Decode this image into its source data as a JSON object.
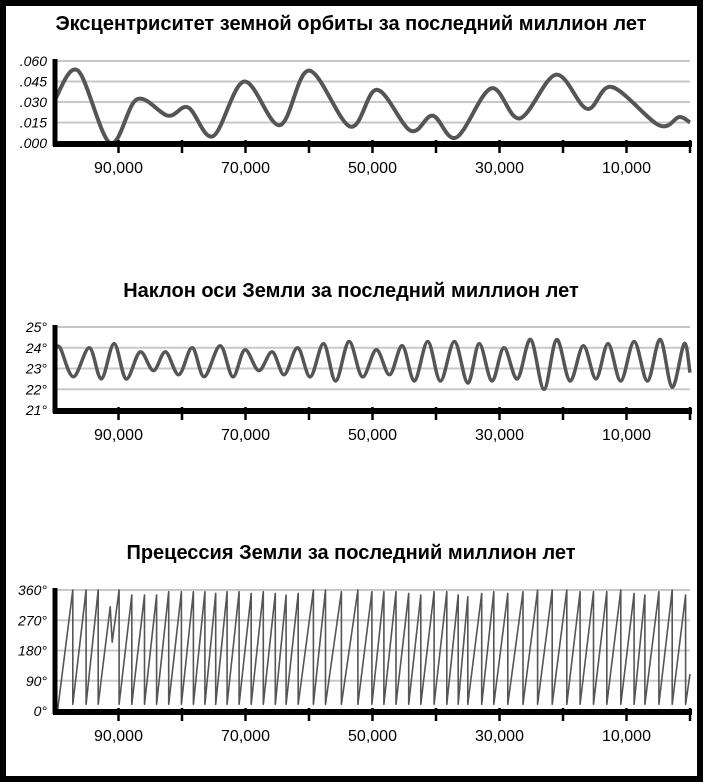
{
  "chart_data": [
    {
      "type": "line",
      "title": "Эксцентриситет земной орбиты за последний миллион лет",
      "xlim": [
        100000,
        0
      ],
      "ylim": [
        0,
        0.06
      ],
      "grid": true,
      "line_color": "#555555",
      "grid_color": "#c8c8c8",
      "yticks": [
        {
          "v": 0.06,
          "label": ".060"
        },
        {
          "v": 0.045,
          "label": ".045"
        },
        {
          "v": 0.03,
          "label": ".030"
        },
        {
          "v": 0.015,
          "label": ".015"
        },
        {
          "v": 0,
          "label": ".000"
        }
      ],
      "xticks": [
        {
          "v": 90000,
          "label": "90,000"
        },
        {
          "v": 70000,
          "label": "70,000"
        },
        {
          "v": 50000,
          "label": "50,000"
        },
        {
          "v": 30000,
          "label": "30,000"
        },
        {
          "v": 10000,
          "label": "10,000"
        }
      ],
      "points": [
        [
          100000,
          0.032
        ],
        [
          96400,
          0.053
        ],
        [
          91300,
          0.0
        ],
        [
          87100,
          0.032
        ],
        [
          82200,
          0.02
        ],
        [
          79000,
          0.026
        ],
        [
          75100,
          0.005
        ],
        [
          70200,
          0.045
        ],
        [
          64600,
          0.013
        ],
        [
          60000,
          0.053
        ],
        [
          53500,
          0.012
        ],
        [
          49300,
          0.039
        ],
        [
          44000,
          0.009
        ],
        [
          40500,
          0.02
        ],
        [
          36800,
          0.004
        ],
        [
          31300,
          0.04
        ],
        [
          26800,
          0.018
        ],
        [
          21100,
          0.05
        ],
        [
          16200,
          0.025
        ],
        [
          12300,
          0.041
        ],
        [
          4900,
          0.013
        ],
        [
          1700,
          0.019
        ],
        [
          0,
          0.015
        ]
      ]
    },
    {
      "type": "line",
      "title": "Наклон оси Земли за последний миллион лет",
      "xlim": [
        100000,
        0
      ],
      "ylim": [
        21,
        25
      ],
      "grid": true,
      "line_color": "#555555",
      "grid_color": "#c8c8c8",
      "yticks": [
        {
          "v": 25,
          "label": "25°"
        },
        {
          "v": 24,
          "label": "24°"
        },
        {
          "v": 23,
          "label": "23°"
        },
        {
          "v": 22,
          "label": "22°"
        },
        {
          "v": 21,
          "label": "21°"
        }
      ],
      "xticks": [
        {
          "v": 90000,
          "label": "90,000"
        },
        {
          "v": 70000,
          "label": "70,000"
        },
        {
          "v": 50000,
          "label": "50,000"
        },
        {
          "v": 30000,
          "label": "30,000"
        },
        {
          "v": 10000,
          "label": "10,000"
        }
      ],
      "points": [
        [
          100000,
          23.9
        ],
        [
          99200,
          24.0
        ],
        [
          97100,
          22.6
        ],
        [
          94600,
          24.0
        ],
        [
          92700,
          22.5
        ],
        [
          90700,
          24.2
        ],
        [
          88800,
          22.5
        ],
        [
          86600,
          23.8
        ],
        [
          84500,
          22.9
        ],
        [
          82600,
          23.8
        ],
        [
          80500,
          22.7
        ],
        [
          78400,
          24.0
        ],
        [
          76500,
          22.6
        ],
        [
          74000,
          24.1
        ],
        [
          72000,
          22.6
        ],
        [
          70100,
          23.9
        ],
        [
          67900,
          22.9
        ],
        [
          65800,
          23.8
        ],
        [
          63900,
          22.7
        ],
        [
          61800,
          24.0
        ],
        [
          59800,
          22.6
        ],
        [
          57700,
          24.2
        ],
        [
          55800,
          22.4
        ],
        [
          53700,
          24.3
        ],
        [
          51600,
          22.6
        ],
        [
          49400,
          23.9
        ],
        [
          47300,
          22.7
        ],
        [
          45300,
          24.1
        ],
        [
          43400,
          22.4
        ],
        [
          41300,
          24.3
        ],
        [
          39300,
          22.4
        ],
        [
          37100,
          24.3
        ],
        [
          35000,
          22.3
        ],
        [
          33200,
          24.2
        ],
        [
          31200,
          22.4
        ],
        [
          29300,
          24.0
        ],
        [
          27200,
          22.5
        ],
        [
          25100,
          24.4
        ],
        [
          23000,
          22.0
        ],
        [
          21000,
          24.4
        ],
        [
          18900,
          22.4
        ],
        [
          16800,
          24.1
        ],
        [
          14800,
          22.5
        ],
        [
          12900,
          24.2
        ],
        [
          10900,
          22.4
        ],
        [
          8800,
          24.3
        ],
        [
          6700,
          22.4
        ],
        [
          4700,
          24.4
        ],
        [
          2800,
          22.1
        ],
        [
          900,
          24.2
        ],
        [
          0,
          22.8
        ]
      ]
    },
    {
      "type": "line",
      "title": "Прецессия Земли за последний миллион лет",
      "xlim": [
        100000,
        0
      ],
      "ylim": [
        0,
        360
      ],
      "grid": true,
      "line_color": "#555555",
      "grid_color": "#c8c8c8",
      "yticks": [
        {
          "v": 360,
          "label": "360°"
        },
        {
          "v": 270,
          "label": "270°"
        },
        {
          "v": 180,
          "label": "180°"
        },
        {
          "v": 90,
          "label": "90°"
        },
        {
          "v": 0,
          "label": "0°"
        }
      ],
      "xticks": [
        {
          "v": 90000,
          "label": "90,000"
        },
        {
          "v": 70000,
          "label": "70,000"
        },
        {
          "v": 50000,
          "label": "50,000"
        },
        {
          "v": 30000,
          "label": "30,000"
        },
        {
          "v": 10000,
          "label": "10,000"
        }
      ],
      "points": [
        [
          99600,
          0
        ],
        [
          97200,
          360
        ],
        [
          97200,
          20
        ],
        [
          95100,
          360
        ],
        [
          95100,
          20
        ],
        [
          93200,
          360
        ],
        [
          93200,
          20
        ],
        [
          91300,
          310
        ],
        [
          91000,
          205
        ],
        [
          89900,
          360
        ],
        [
          89900,
          20
        ],
        [
          87900,
          345
        ],
        [
          87900,
          20
        ],
        [
          85900,
          345
        ],
        [
          85900,
          20
        ],
        [
          84000,
          345
        ],
        [
          84000,
          20
        ],
        [
          82100,
          355
        ],
        [
          82100,
          20
        ],
        [
          80100,
          355
        ],
        [
          80100,
          20
        ],
        [
          78200,
          355
        ],
        [
          78200,
          20
        ],
        [
          76400,
          355
        ],
        [
          76400,
          20
        ],
        [
          74700,
          350
        ],
        [
          74700,
          20
        ],
        [
          72900,
          355
        ],
        [
          72900,
          20
        ],
        [
          71000,
          355
        ],
        [
          71000,
          20
        ],
        [
          69100,
          350
        ],
        [
          69100,
          20
        ],
        [
          67200,
          355
        ],
        [
          67200,
          20
        ],
        [
          65300,
          350
        ],
        [
          65300,
          20
        ],
        [
          63600,
          345
        ],
        [
          63600,
          20
        ],
        [
          61700,
          350
        ],
        [
          61700,
          20
        ],
        [
          59300,
          360
        ],
        [
          59300,
          20
        ],
        [
          57400,
          360
        ],
        [
          57400,
          20
        ],
        [
          54900,
          355
        ],
        [
          54900,
          20
        ],
        [
          52300,
          360
        ],
        [
          52300,
          20
        ],
        [
          50100,
          355
        ],
        [
          50100,
          20
        ],
        [
          48200,
          355
        ],
        [
          48200,
          20
        ],
        [
          46300,
          355
        ],
        [
          46300,
          20
        ],
        [
          44300,
          350
        ],
        [
          44300,
          20
        ],
        [
          42400,
          345
        ],
        [
          42400,
          20
        ],
        [
          40300,
          355
        ],
        [
          40300,
          20
        ],
        [
          38300,
          355
        ],
        [
          38300,
          20
        ],
        [
          36500,
          345
        ],
        [
          36500,
          20
        ],
        [
          35000,
          340
        ],
        [
          35000,
          20
        ],
        [
          32800,
          350
        ],
        [
          32800,
          20
        ],
        [
          30900,
          355
        ],
        [
          30900,
          20
        ],
        [
          28700,
          350
        ],
        [
          28700,
          20
        ],
        [
          26300,
          355
        ],
        [
          26300,
          20
        ],
        [
          24000,
          360
        ],
        [
          24000,
          20
        ],
        [
          21700,
          360
        ],
        [
          21700,
          20
        ],
        [
          19400,
          360
        ],
        [
          19400,
          20
        ],
        [
          17300,
          355
        ],
        [
          17300,
          20
        ],
        [
          15200,
          355
        ],
        [
          15200,
          20
        ],
        [
          13100,
          355
        ],
        [
          13100,
          20
        ],
        [
          10900,
          360
        ],
        [
          10900,
          20
        ],
        [
          8800,
          350
        ],
        [
          8800,
          20
        ],
        [
          7100,
          345
        ],
        [
          7100,
          20
        ],
        [
          4900,
          355
        ],
        [
          4900,
          20
        ],
        [
          2800,
          360
        ],
        [
          2800,
          20
        ],
        [
          700,
          345
        ],
        [
          700,
          20
        ],
        [
          0,
          110
        ]
      ]
    }
  ]
}
